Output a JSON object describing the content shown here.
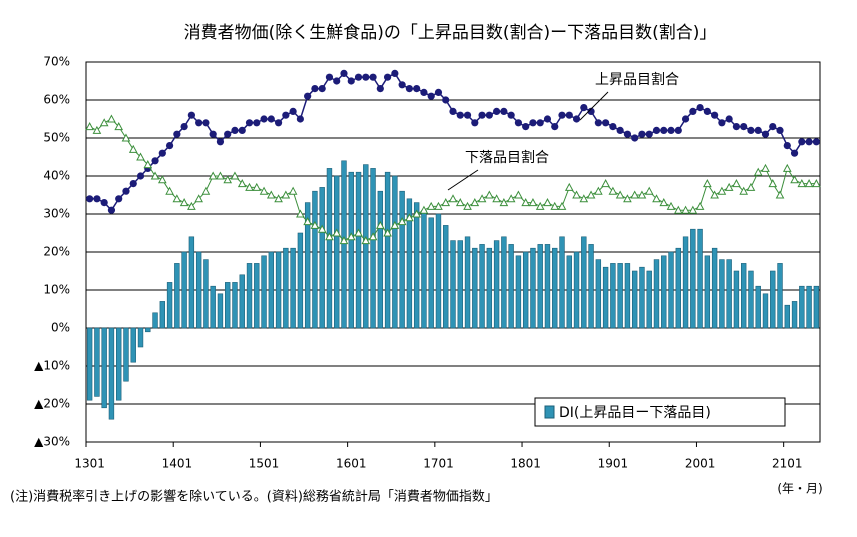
{
  "chart_data": {
    "type": "combo",
    "title": "消費者物価(除く生鮮食品)の「上昇品目数(割合)ー下落品目数(割合)」",
    "note": "(注)消費税率引き上げの影響を除いている。(資料)総務省統計局「消費者物価指数」",
    "x_label": "(年・月)",
    "categories": [
      "1301",
      null,
      null,
      null,
      null,
      null,
      null,
      null,
      null,
      null,
      null,
      null,
      "1401",
      null,
      null,
      null,
      null,
      null,
      null,
      null,
      null,
      null,
      null,
      null,
      "1501",
      null,
      null,
      null,
      null,
      null,
      null,
      null,
      null,
      null,
      null,
      null,
      "1601",
      null,
      null,
      null,
      null,
      null,
      null,
      null,
      null,
      null,
      null,
      null,
      "1701",
      null,
      null,
      null,
      null,
      null,
      null,
      null,
      null,
      null,
      null,
      null,
      "1801",
      null,
      null,
      null,
      null,
      null,
      null,
      null,
      null,
      null,
      null,
      null,
      "1901",
      null,
      null,
      null,
      null,
      null,
      null,
      null,
      null,
      null,
      null,
      null,
      "2001",
      null,
      null,
      null,
      null,
      null,
      null,
      null,
      null,
      null,
      null,
      null,
      "2101",
      null,
      null,
      null,
      null
    ],
    "ylim": [
      -30,
      70
    ],
    "yticks": [
      {
        "value": -30,
        "label": "▲30%"
      },
      {
        "value": -20,
        "label": "▲20%"
      },
      {
        "value": -10,
        "label": "▲10%"
      },
      {
        "value": 0,
        "label": "0%"
      },
      {
        "value": 10,
        "label": "10%"
      },
      {
        "value": 20,
        "label": "20%"
      },
      {
        "value": 30,
        "label": "30%"
      },
      {
        "value": 40,
        "label": "40%"
      },
      {
        "value": 50,
        "label": "50%"
      },
      {
        "value": 60,
        "label": "60%"
      },
      {
        "value": 70,
        "label": "70%"
      }
    ],
    "grid": true,
    "legend": "lower right",
    "series": [
      {
        "name": "DI(上昇品目ー下落品目)",
        "type": "bar",
        "color": "#2f93b5",
        "values": [
          -19,
          -18,
          -21,
          -24,
          -19,
          -14,
          -9,
          -5,
          -1,
          4,
          7,
          12,
          17,
          20,
          24,
          20,
          18,
          11,
          9,
          12,
          12,
          14,
          17,
          17,
          19,
          20,
          20,
          21,
          21,
          25,
          33,
          36,
          37,
          42,
          40,
          44,
          41,
          41,
          43,
          42,
          36,
          41,
          40,
          36,
          34,
          33,
          31,
          29,
          30,
          27,
          23,
          23,
          24,
          21,
          22,
          21,
          23,
          24,
          22,
          19,
          20,
          21,
          22,
          22,
          21,
          24,
          19,
          20,
          24,
          22,
          18,
          16,
          17,
          17,
          17,
          15,
          16,
          15,
          18,
          19,
          20,
          21,
          24,
          26,
          26,
          19,
          21,
          18,
          18,
          15,
          17,
          15,
          11,
          9,
          15,
          17,
          6,
          7,
          11,
          11,
          11
        ]
      },
      {
        "name": "上昇品目割合",
        "type": "line",
        "marker": "circle",
        "color": "#1c1c78",
        "values": [
          34,
          34,
          33,
          31,
          34,
          36,
          38,
          40,
          42,
          44,
          46,
          48,
          51,
          53,
          56,
          54,
          54,
          51,
          49,
          51,
          52,
          52,
          54,
          54,
          55,
          55,
          54,
          56,
          57,
          55,
          61,
          63,
          63,
          66,
          65,
          67,
          65,
          66,
          66,
          66,
          63,
          66,
          67,
          64,
          63,
          63,
          62,
          61,
          62,
          60,
          57,
          56,
          56,
          54,
          56,
          56,
          57,
          57,
          56,
          54,
          53,
          54,
          54,
          55,
          53,
          56,
          56,
          55,
          58,
          57,
          54,
          54,
          53,
          52,
          51,
          50,
          51,
          51,
          52,
          52,
          52,
          52,
          55,
          57,
          58,
          57,
          56,
          54,
          55,
          53,
          53,
          52,
          52,
          51,
          53,
          52,
          48,
          46,
          49,
          49,
          49
        ]
      },
      {
        "name": "下落品目割合",
        "type": "line",
        "marker": "triangle",
        "color": "#3c8f3c",
        "values": [
          53,
          52,
          54,
          55,
          53,
          50,
          47,
          45,
          43,
          40,
          39,
          36,
          34,
          33,
          32,
          34,
          36,
          40,
          40,
          39,
          40,
          38,
          37,
          37,
          36,
          35,
          34,
          35,
          36,
          30,
          28,
          27,
          26,
          24,
          25,
          23,
          24,
          25,
          23,
          24,
          27,
          25,
          27,
          28,
          29,
          30,
          31,
          32,
          32,
          33,
          34,
          33,
          32,
          33,
          34,
          35,
          34,
          33,
          34,
          35,
          33,
          33,
          32,
          33,
          32,
          32,
          37,
          35,
          34,
          35,
          36,
          38,
          36,
          35,
          34,
          35,
          35,
          36,
          34,
          33,
          32,
          31,
          31,
          31,
          32,
          38,
          35,
          36,
          37,
          38,
          36,
          37,
          41,
          42,
          38,
          35,
          42,
          39,
          38,
          38,
          38
        ]
      }
    ]
  }
}
